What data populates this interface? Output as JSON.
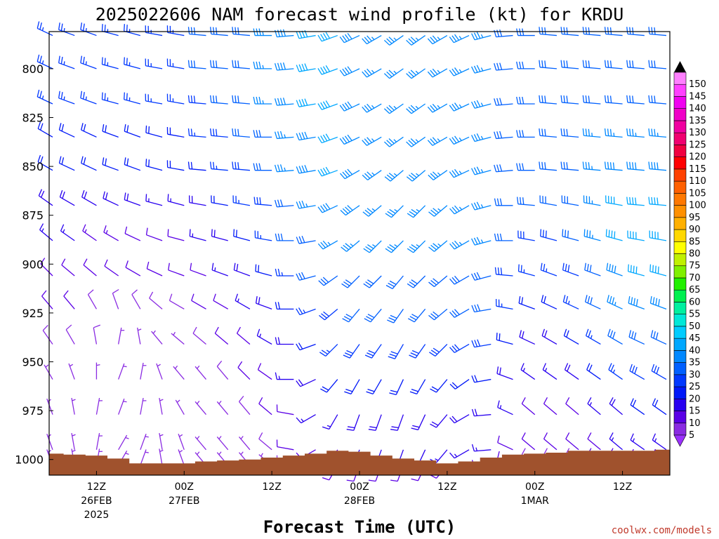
{
  "chart_data": {
    "type": "wind-barb-time-height",
    "title": "2025022606 NAM forecast wind profile (kt) for KRDU",
    "xlabel": "Forecast Time (UTC)",
    "ylabel": "",
    "credit": "coolwx.com/models",
    "y_axis": {
      "unit": "hPa",
      "ticks": [
        800,
        825,
        850,
        875,
        900,
        925,
        950,
        975,
        1000
      ],
      "range": [
        781,
        1008
      ]
    },
    "x_axis": {
      "range_hours": [
        0,
        84
      ],
      "ticks": [
        {
          "hour": 6,
          "time": "12Z",
          "date": "26FEB",
          "year": "2025"
        },
        {
          "hour": 18,
          "time": "00Z",
          "date": "27FEB",
          "year": ""
        },
        {
          "hour": 30,
          "time": "12Z",
          "date": "",
          "year": ""
        },
        {
          "hour": 42,
          "time": "00Z",
          "date": "28FEB",
          "year": ""
        },
        {
          "hour": 54,
          "time": "12Z",
          "date": "",
          "year": ""
        },
        {
          "hour": 66,
          "time": "00Z",
          "date": "1MAR",
          "year": ""
        },
        {
          "hour": 78,
          "time": "12Z",
          "date": "",
          "year": ""
        }
      ]
    },
    "barb_levels_hpa": [
      783,
      800,
      818,
      835,
      852,
      870,
      888,
      906,
      923,
      941,
      959,
      977,
      995,
      1003
    ],
    "barb_hours": [
      0,
      3,
      6,
      9,
      12,
      15,
      18,
      21,
      24,
      27,
      30,
      33,
      36,
      39,
      42,
      45,
      48,
      51,
      54,
      57,
      60,
      63,
      66,
      69,
      72,
      75,
      78,
      81,
      84
    ],
    "wind_direction_deg": [
      [
        295,
        290,
        290,
        285,
        285,
        280,
        280,
        275,
        275,
        275,
        270,
        265,
        260,
        250,
        245,
        240,
        235,
        235,
        240,
        245,
        255,
        265,
        270,
        275,
        275,
        275,
        275,
        275,
        275
      ],
      [
        295,
        290,
        290,
        285,
        285,
        280,
        280,
        275,
        275,
        275,
        270,
        265,
        260,
        250,
        245,
        240,
        235,
        235,
        240,
        245,
        255,
        265,
        270,
        275,
        275,
        275,
        275,
        275,
        275
      ],
      [
        295,
        290,
        290,
        285,
        285,
        280,
        280,
        275,
        275,
        275,
        270,
        265,
        260,
        250,
        245,
        240,
        235,
        235,
        240,
        245,
        255,
        265,
        270,
        275,
        275,
        275,
        275,
        275,
        275
      ],
      [
        300,
        295,
        295,
        290,
        290,
        285,
        280,
        275,
        275,
        275,
        270,
        265,
        260,
        250,
        245,
        240,
        235,
        235,
        240,
        245,
        255,
        265,
        270,
        275,
        275,
        275,
        275,
        275,
        275
      ],
      [
        300,
        295,
        295,
        290,
        290,
        285,
        280,
        275,
        275,
        275,
        270,
        265,
        260,
        250,
        240,
        235,
        230,
        230,
        235,
        245,
        255,
        265,
        270,
        275,
        275,
        275,
        275,
        275,
        275
      ],
      [
        305,
        300,
        300,
        295,
        290,
        285,
        285,
        280,
        280,
        280,
        275,
        265,
        260,
        245,
        235,
        230,
        225,
        225,
        230,
        240,
        255,
        270,
        275,
        280,
        280,
        280,
        280,
        275,
        275
      ],
      [
        310,
        305,
        305,
        300,
        295,
        290,
        285,
        285,
        285,
        285,
        280,
        270,
        260,
        240,
        230,
        225,
        225,
        225,
        230,
        240,
        255,
        270,
        280,
        285,
        285,
        285,
        285,
        280,
        280
      ],
      [
        315,
        310,
        310,
        305,
        300,
        295,
        290,
        290,
        290,
        290,
        285,
        270,
        255,
        235,
        225,
        225,
        220,
        225,
        230,
        240,
        255,
        275,
        285,
        290,
        290,
        290,
        290,
        285,
        285
      ],
      [
        320,
        320,
        330,
        340,
        330,
        310,
        300,
        300,
        300,
        300,
        290,
        270,
        250,
        230,
        220,
        220,
        215,
        220,
        230,
        240,
        260,
        280,
        290,
        295,
        295,
        295,
        295,
        290,
        290
      ],
      [
        325,
        330,
        350,
        10,
        350,
        320,
        310,
        310,
        310,
        310,
        300,
        270,
        250,
        225,
        215,
        215,
        210,
        215,
        225,
        240,
        260,
        285,
        295,
        300,
        300,
        300,
        300,
        295,
        295
      ],
      [
        330,
        340,
        360,
        20,
        10,
        340,
        320,
        320,
        320,
        315,
        305,
        270,
        245,
        220,
        210,
        210,
        205,
        210,
        220,
        235,
        260,
        290,
        305,
        305,
        305,
        305,
        305,
        300,
        300
      ],
      [
        340,
        350,
        10,
        20,
        10,
        350,
        330,
        320,
        320,
        320,
        310,
        280,
        240,
        210,
        200,
        200,
        200,
        205,
        220,
        240,
        265,
        295,
        310,
        310,
        310,
        310,
        310,
        305,
        305
      ],
      [
        340,
        350,
        10,
        30,
        20,
        350,
        340,
        320,
        320,
        320,
        310,
        280,
        240,
        210,
        200,
        200,
        200,
        205,
        220,
        240,
        265,
        295,
        310,
        310,
        310,
        310,
        310,
        305,
        305
      ],
      [
        340,
        350,
        10,
        30,
        20,
        350,
        340,
        320,
        320,
        320,
        310,
        280,
        240,
        210,
        200,
        200,
        200,
        205,
        220,
        240,
        265,
        295,
        310,
        310,
        310,
        310,
        310,
        305,
        305
      ]
    ],
    "wind_speed_kt": [
      [
        25,
        25,
        25,
        25,
        25,
        25,
        25,
        30,
        30,
        30,
        35,
        38,
        40,
        40,
        38,
        35,
        35,
        35,
        35,
        35,
        35,
        32,
        30,
        30,
        30,
        30,
        30,
        30,
        30
      ],
      [
        25,
        25,
        25,
        25,
        25,
        25,
        25,
        30,
        32,
        32,
        35,
        38,
        40,
        40,
        38,
        35,
        35,
        35,
        35,
        35,
        35,
        32,
        30,
        30,
        30,
        30,
        30,
        30,
        30
      ],
      [
        25,
        25,
        25,
        25,
        25,
        25,
        25,
        28,
        30,
        32,
        35,
        38,
        40,
        40,
        38,
        35,
        35,
        35,
        35,
        35,
        35,
        32,
        30,
        30,
        32,
        32,
        32,
        32,
        32
      ],
      [
        22,
        22,
        22,
        22,
        22,
        22,
        22,
        25,
        28,
        30,
        32,
        35,
        38,
        40,
        38,
        35,
        35,
        35,
        35,
        35,
        35,
        32,
        30,
        30,
        32,
        35,
        35,
        35,
        35
      ],
      [
        20,
        20,
        20,
        20,
        20,
        20,
        20,
        22,
        25,
        28,
        30,
        35,
        38,
        40,
        38,
        35,
        35,
        35,
        35,
        35,
        35,
        32,
        30,
        30,
        32,
        35,
        38,
        38,
        38
      ],
      [
        18,
        18,
        18,
        18,
        18,
        16,
        16,
        18,
        22,
        25,
        28,
        32,
        35,
        38,
        38,
        35,
        35,
        35,
        35,
        35,
        35,
        32,
        30,
        30,
        32,
        35,
        40,
        40,
        40
      ],
      [
        15,
        15,
        14,
        14,
        12,
        12,
        12,
        15,
        18,
        22,
        25,
        30,
        32,
        35,
        35,
        35,
        35,
        35,
        35,
        35,
        35,
        30,
        28,
        28,
        30,
        35,
        40,
        40,
        40
      ],
      [
        12,
        12,
        12,
        10,
        10,
        10,
        10,
        12,
        15,
        18,
        22,
        25,
        30,
        32,
        32,
        32,
        32,
        32,
        32,
        32,
        32,
        28,
        25,
        25,
        28,
        32,
        38,
        40,
        40
      ],
      [
        10,
        10,
        8,
        8,
        8,
        8,
        8,
        10,
        12,
        15,
        18,
        22,
        25,
        28,
        30,
        30,
        30,
        30,
        30,
        30,
        30,
        25,
        22,
        22,
        25,
        30,
        35,
        38,
        38
      ],
      [
        8,
        8,
        8,
        6,
        6,
        6,
        6,
        8,
        10,
        12,
        15,
        18,
        22,
        25,
        28,
        28,
        28,
        28,
        28,
        28,
        28,
        22,
        18,
        18,
        22,
        25,
        30,
        32,
        32
      ],
      [
        6,
        6,
        6,
        6,
        5,
        5,
        5,
        6,
        8,
        10,
        12,
        15,
        18,
        20,
        22,
        22,
        22,
        22,
        22,
        22,
        22,
        18,
        15,
        15,
        18,
        20,
        25,
        28,
        28
      ],
      [
        5,
        5,
        5,
        5,
        5,
        5,
        5,
        5,
        6,
        8,
        10,
        12,
        15,
        15,
        18,
        18,
        18,
        18,
        18,
        18,
        18,
        15,
        12,
        12,
        12,
        15,
        18,
        20,
        20
      ],
      [
        5,
        5,
        5,
        5,
        5,
        5,
        5,
        5,
        5,
        6,
        8,
        10,
        12,
        12,
        15,
        15,
        15,
        15,
        15,
        15,
        15,
        12,
        10,
        10,
        10,
        12,
        15,
        15,
        15
      ],
      [
        5,
        5,
        5,
        5,
        5,
        5,
        5,
        5,
        5,
        5,
        6,
        8,
        10,
        10,
        12,
        12,
        12,
        12,
        12,
        12,
        12,
        10,
        8,
        8,
        8,
        10,
        12,
        12,
        12
      ]
    ],
    "terrain": {
      "ground_pressure_hpa": [
        997,
        997.5,
        998,
        999.5,
        1002,
        1002,
        1002,
        1001,
        1000.5,
        1000,
        999,
        998,
        997,
        995.5,
        996,
        998,
        999.5,
        1000.5,
        1002,
        1001,
        999,
        997.5,
        997,
        996.5,
        995.5,
        995.5,
        995.5,
        995.5,
        995
      ],
      "color": "#a0522d"
    },
    "colorbar": {
      "levels": [
        5,
        10,
        15,
        20,
        25,
        30,
        35,
        40,
        45,
        50,
        55,
        60,
        65,
        70,
        75,
        80,
        85,
        90,
        95,
        100,
        105,
        110,
        115,
        120,
        125,
        130,
        135,
        140,
        145,
        150
      ],
      "colors": [
        "#8a2be2",
        "#5a00e6",
        "#2800f0",
        "#0018f8",
        "#0038ff",
        "#0060ff",
        "#0088ff",
        "#00a8ff",
        "#00ccff",
        "#00e8d8",
        "#00f0a0",
        "#00f050",
        "#20f000",
        "#80f000",
        "#c0f000",
        "#ffff00",
        "#ffd800",
        "#ffb000",
        "#ff9000",
        "#ff7800",
        "#ff6000",
        "#ff4000",
        "#ff0000",
        "#f00040",
        "#f00070",
        "#f000a0",
        "#f000c8",
        "#f000f0",
        "#ff40ff",
        "#ff80ff"
      ],
      "low_color": "#9b30ff",
      "high_color": "#000000"
    }
  }
}
